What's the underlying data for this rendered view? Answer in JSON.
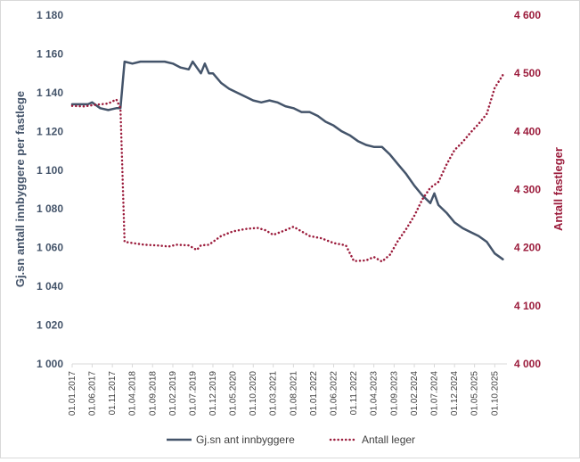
{
  "chart_data": {
    "type": "line",
    "ylabel_left": "Gj.sn antall innbyggere per fastlege",
    "ylabel_right": "Antall fastleger",
    "ylim_left": [
      1000,
      1180
    ],
    "ylim_right": [
      4000,
      4600
    ],
    "yticks_left": [
      1000,
      1020,
      1040,
      1060,
      1080,
      1100,
      1120,
      1140,
      1160,
      1180
    ],
    "yticks_left_labels": [
      "1 000",
      "1 020",
      "1 040",
      "1 060",
      "1 080",
      "1 100",
      "1 120",
      "1 140",
      "1 160",
      "1 180"
    ],
    "yticks_right": [
      4000,
      4100,
      4200,
      4300,
      4400,
      4500,
      4600
    ],
    "yticks_right_labels": [
      "4 000",
      "4 100",
      "4 200",
      "4 300",
      "4 400",
      "4 500",
      "4 600"
    ],
    "x_start": "01.01.2017",
    "x_end": "01.01.2026",
    "xtick_labels": [
      "01.01.2017",
      "01.06.2017",
      "01.11.2017",
      "01.04.2018",
      "01.09.2018",
      "01.02.2019",
      "01.07.2019",
      "01.12.2019",
      "01.05.2020",
      "01.10.2020",
      "01.03.2021",
      "01.08.2021",
      "01.01.2022",
      "01.06.2022",
      "01.11.2022",
      "01.04.2023",
      "01.09.2023",
      "01.02.2024",
      "01.07.2024",
      "01.12.2024",
      "01.05.2025",
      "01.10.2025"
    ],
    "grid": false,
    "legend_position": "bottom",
    "series": [
      {
        "name": "Gj.sn ant innbyggere",
        "axis": "left",
        "color": "#44546a",
        "style": "solid",
        "points": [
          [
            "01.01.2017",
            1134
          ],
          [
            "01.03.2017",
            1134
          ],
          [
            "01.05.2017",
            1134
          ],
          [
            "01.06.2017",
            1135
          ],
          [
            "01.08.2017",
            1132
          ],
          [
            "01.10.2017",
            1131
          ],
          [
            "01.12.2017",
            1132
          ],
          [
            "01.01.2018",
            1132
          ],
          [
            "01.02.2018",
            1156
          ],
          [
            "01.04.2018",
            1155
          ],
          [
            "01.06.2018",
            1156
          ],
          [
            "01.08.2018",
            1156
          ],
          [
            "01.10.2018",
            1156
          ],
          [
            "01.12.2018",
            1156
          ],
          [
            "01.02.2019",
            1155
          ],
          [
            "01.04.2019",
            1153
          ],
          [
            "01.06.2019",
            1152
          ],
          [
            "01.07.2019",
            1156
          ],
          [
            "01.08.2019",
            1153
          ],
          [
            "01.09.2019",
            1150
          ],
          [
            "01.10.2019",
            1155
          ],
          [
            "01.11.2019",
            1150
          ],
          [
            "01.12.2019",
            1150
          ],
          [
            "01.02.2020",
            1145
          ],
          [
            "01.04.2020",
            1142
          ],
          [
            "01.06.2020",
            1140
          ],
          [
            "01.08.2020",
            1138
          ],
          [
            "01.10.2020",
            1136
          ],
          [
            "01.12.2020",
            1135
          ],
          [
            "01.02.2021",
            1136
          ],
          [
            "01.04.2021",
            1135
          ],
          [
            "01.06.2021",
            1133
          ],
          [
            "01.08.2021",
            1132
          ],
          [
            "01.10.2021",
            1130
          ],
          [
            "01.12.2021",
            1130
          ],
          [
            "01.02.2022",
            1128
          ],
          [
            "01.04.2022",
            1125
          ],
          [
            "01.06.2022",
            1123
          ],
          [
            "01.08.2022",
            1120
          ],
          [
            "01.10.2022",
            1118
          ],
          [
            "01.12.2022",
            1115
          ],
          [
            "01.02.2023",
            1113
          ],
          [
            "01.04.2023",
            1112
          ],
          [
            "01.06.2023",
            1112
          ],
          [
            "01.08.2023",
            1108
          ],
          [
            "01.10.2023",
            1103
          ],
          [
            "01.12.2023",
            1098
          ],
          [
            "01.02.2024",
            1092
          ],
          [
            "01.04.2024",
            1087
          ],
          [
            "01.06.2024",
            1083
          ],
          [
            "01.07.2024",
            1088
          ],
          [
            "01.08.2024",
            1082
          ],
          [
            "01.10.2024",
            1078
          ],
          [
            "01.12.2024",
            1073
          ],
          [
            "01.02.2025",
            1070
          ],
          [
            "01.04.2025",
            1068
          ],
          [
            "01.06.2025",
            1066
          ],
          [
            "01.08.2025",
            1063
          ],
          [
            "01.10.2025",
            1057
          ],
          [
            "01.12.2025",
            1054
          ]
        ]
      },
      {
        "name": "Antall leger",
        "axis": "right",
        "color": "#9b1b3b",
        "style": "dotted",
        "points": [
          [
            "01.01.2017",
            4444
          ],
          [
            "01.04.2017",
            4443
          ],
          [
            "01.07.2017",
            4446
          ],
          [
            "01.10.2017",
            4448
          ],
          [
            "01.12.2017",
            4455
          ],
          [
            "01.01.2018",
            4440
          ],
          [
            "01.02.2018",
            4210
          ],
          [
            "01.04.2018",
            4208
          ],
          [
            "01.07.2018",
            4205
          ],
          [
            "01.10.2018",
            4204
          ],
          [
            "01.01.2019",
            4202
          ],
          [
            "01.03.2019",
            4205
          ],
          [
            "01.06.2019",
            4204
          ],
          [
            "01.08.2019",
            4196
          ],
          [
            "01.09.2019",
            4204
          ],
          [
            "01.11.2019",
            4205
          ],
          [
            "01.02.2020",
            4220
          ],
          [
            "01.05.2020",
            4228
          ],
          [
            "01.08.2020",
            4232
          ],
          [
            "01.11.2020",
            4234
          ],
          [
            "01.01.2021",
            4230
          ],
          [
            "01.03.2021",
            4222
          ],
          [
            "01.06.2021",
            4230
          ],
          [
            "01.08.2021",
            4236
          ],
          [
            "01.10.2021",
            4228
          ],
          [
            "01.12.2021",
            4220
          ],
          [
            "01.03.2022",
            4216
          ],
          [
            "01.06.2022",
            4208
          ],
          [
            "01.09.2022",
            4204
          ],
          [
            "01.11.2022",
            4177
          ],
          [
            "01.02.2023",
            4178
          ],
          [
            "01.04.2023",
            4184
          ],
          [
            "01.06.2023",
            4176
          ],
          [
            "01.08.2023",
            4188
          ],
          [
            "01.10.2023",
            4212
          ],
          [
            "01.12.2023",
            4232
          ],
          [
            "01.02.2024",
            4255
          ],
          [
            "01.04.2024",
            4283
          ],
          [
            "01.06.2024",
            4303
          ],
          [
            "01.08.2024",
            4313
          ],
          [
            "01.10.2024",
            4343
          ],
          [
            "01.12.2024",
            4368
          ],
          [
            "01.02.2025",
            4382
          ],
          [
            "01.04.2025",
            4398
          ],
          [
            "01.06.2025",
            4413
          ],
          [
            "01.08.2025",
            4430
          ],
          [
            "01.10.2025",
            4475
          ],
          [
            "01.12.2025",
            4497
          ]
        ]
      }
    ]
  }
}
